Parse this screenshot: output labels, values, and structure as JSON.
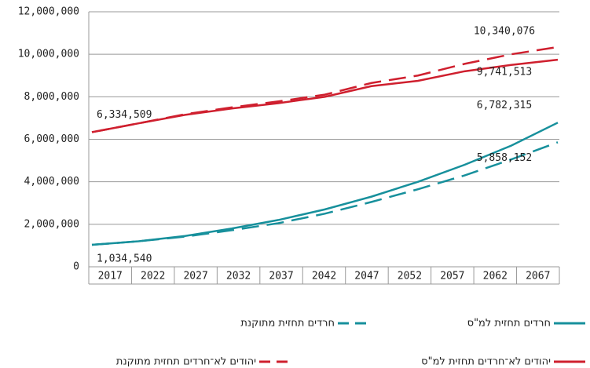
{
  "chart_data": {
    "type": "line",
    "categories": [
      "2017",
      "2022",
      "2027",
      "2032",
      "2037",
      "2042",
      "2047",
      "2052",
      "2057",
      "2062",
      "2067"
    ],
    "series": [
      {
        "name": "חרדים תחזית למ\"ס",
        "color": "#17909c",
        "dashed": false,
        "values": [
          1034540,
          1200000,
          1450000,
          1800000,
          2200000,
          2700000,
          3300000,
          4000000,
          4800000,
          5700000,
          6782315
        ],
        "value_labels": [
          "1,034,540",
          null,
          null,
          null,
          null,
          null,
          null,
          null,
          null,
          null,
          "6,782,315"
        ]
      },
      {
        "name": "חרדים תחזית מתוקנת",
        "color": "#17909c",
        "dashed": true,
        "values": [
          1034540,
          1200000,
          1420000,
          1720000,
          2050000,
          2500000,
          3050000,
          3650000,
          4300000,
          5050000,
          5858152
        ],
        "value_labels": [
          null,
          null,
          null,
          null,
          null,
          null,
          null,
          null,
          null,
          null,
          "5,858,152"
        ]
      },
      {
        "name": "יהודים לא־חרדים תחזית למ\"ס",
        "color": "#cf1f2e",
        "dashed": false,
        "values": [
          6334509,
          6750000,
          7150000,
          7450000,
          7700000,
          8000000,
          8500000,
          8750000,
          9200000,
          9500000,
          9741513
        ],
        "value_labels": [
          "6,334,509",
          null,
          null,
          null,
          null,
          null,
          null,
          null,
          null,
          null,
          "9,741,513"
        ]
      },
      {
        "name": "יהודים לא־חרדים תחזית מתוקנת",
        "color": "#cf1f2e",
        "dashed": true,
        "values": [
          6334509,
          6750000,
          7180000,
          7500000,
          7780000,
          8100000,
          8650000,
          9000000,
          9550000,
          10000000,
          10340076
        ],
        "value_labels": [
          null,
          null,
          null,
          null,
          null,
          null,
          null,
          null,
          null,
          null,
          "10,340,076"
        ]
      }
    ],
    "ylim": [
      0,
      12000000
    ],
    "yticks": [
      0,
      {
        "value": 2000000,
        "label": "2,000,000"
      },
      {
        "value": 4000000,
        "label": "4,000,000"
      },
      {
        "value": 6000000,
        "label": "6,000,000"
      },
      {
        "value": 8000000,
        "label": "8,000,000"
      },
      {
        "value": 10000000,
        "label": "10,000,000"
      },
      {
        "value": 12000000,
        "label": "12,000,000"
      }
    ],
    "grid": true
  }
}
